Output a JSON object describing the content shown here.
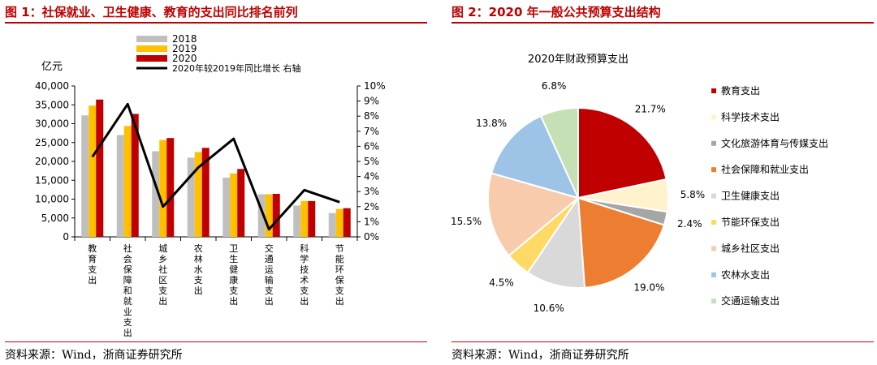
{
  "left": {
    "title": "图 1：社保就业、卫生健康、教育的支出同比排名前列",
    "source": "资料来源：Wind，浙商证券研究所"
  },
  "right": {
    "title": "图 2：2020 年一般公共预算支出结构",
    "source": "资料来源：Wind，浙商证券研究所"
  },
  "chart_data": [
    {
      "type": "bar",
      "ylabel": "亿元",
      "ylim": [
        0,
        40000
      ],
      "yticks": [
        "0",
        "5,000",
        "10,000",
        "15,000",
        "20,000",
        "25,000",
        "30,000",
        "35,000",
        "40,000"
      ],
      "y2lim": [
        0,
        10
      ],
      "y2ticks": [
        "0%",
        "1%",
        "2%",
        "3%",
        "4%",
        "5%",
        "6%",
        "7%",
        "8%",
        "9%",
        "10%"
      ],
      "categories": [
        "教育支出",
        "社会保障和就业支出",
        "城乡社区支出",
        "农林水支出",
        "卫生健康支出",
        "交通运输支出",
        "科学技术支出",
        "节能环保支出"
      ],
      "series": [
        {
          "name": "2018",
          "color": "#bfbfbf",
          "values": [
            32200,
            27000,
            22700,
            21000,
            15700,
            11300,
            8300,
            6300
          ]
        },
        {
          "name": "2019",
          "color": "#ffc000",
          "values": [
            34800,
            29400,
            25700,
            22500,
            16800,
            11300,
            9500,
            7400
          ]
        },
        {
          "name": "2020",
          "color": "#c00000",
          "values": [
            36400,
            32600,
            26200,
            23600,
            18000,
            11400,
            9500,
            7600
          ]
        },
        {
          "name": "2020年较2019年同比增长 右轴",
          "type": "line",
          "axis": "right",
          "color": "#000000",
          "values": [
            5.3,
            8.8,
            2.0,
            4.6,
            6.5,
            0.5,
            3.1,
            2.3
          ]
        }
      ],
      "grid": false,
      "legend_position": "top"
    },
    {
      "type": "pie",
      "title": "2020年财政预算支出",
      "labels": [
        "教育支出",
        "科学技术支出",
        "文化旅游体育与传媒支出",
        "社会保障和就业支出",
        "卫生健康支出",
        "节能环保支出",
        "城乡社区支出",
        "农林水支出",
        "交通运输支出"
      ],
      "values": [
        21.7,
        5.8,
        2.4,
        19.0,
        10.6,
        4.5,
        15.5,
        13.8,
        6.8
      ],
      "value_labels": [
        "21.7%",
        "5.8%",
        "2.4%",
        "19.0%",
        "10.6%",
        "4.5%",
        "15.5%",
        "13.8%",
        "6.8%"
      ],
      "colors": [
        "#c00000",
        "#fff2cc",
        "#a6a6a6",
        "#ed7d31",
        "#d9d9d9",
        "#ffd966",
        "#f8cbad",
        "#9dc3e6",
        "#c5e0b4"
      ],
      "legend_position": "right"
    }
  ]
}
